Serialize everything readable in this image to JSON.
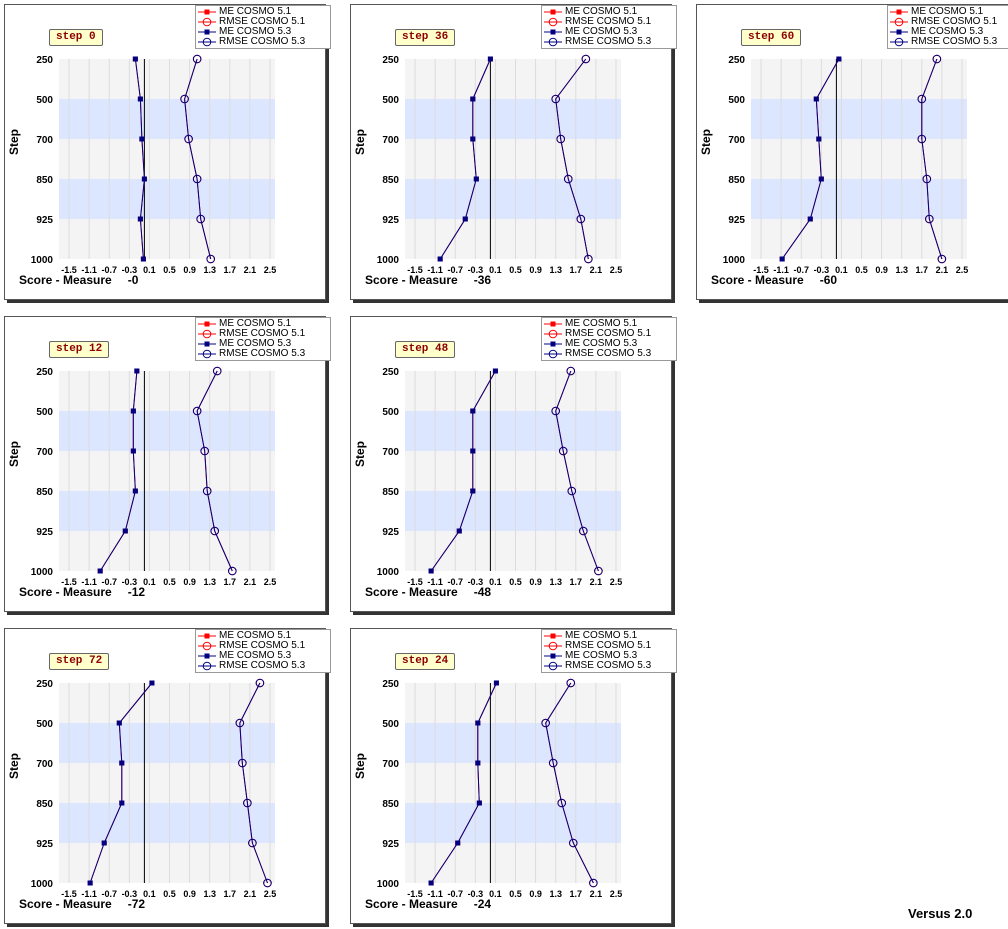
{
  "footer": {
    "version": "Versus 2.0"
  },
  "legend": [
    "ME COSMO 5.1",
    "RMSE COSMO 5.1",
    "ME COSMO 5.3",
    "RMSE COSMO 5.3"
  ],
  "colors": {
    "cosmo51": "#ff0000",
    "cosmo53": "#000080",
    "band": "#dde6ff",
    "bg": "#f4f4f4"
  },
  "chart_data": [
    {
      "type": "line",
      "step": "step 0",
      "xlabel": "Score - Measure",
      "xvalue": "-0",
      "ylabel": "Step",
      "categories": [
        "250",
        "500",
        "700",
        "850",
        "925",
        "1000"
      ],
      "xticks": [
        "-1.5",
        "-1.1",
        "-0.7",
        "-0.3",
        "0.1",
        "0.5",
        "0.9",
        "1.3",
        "1.7",
        "2.1",
        "2.5"
      ],
      "xlim": [
        -1.7,
        2.6
      ],
      "series": [
        {
          "name": "ME COSMO 5.1",
          "values": [
            -0.18,
            -0.08,
            -0.05,
            0.0,
            -0.08,
            -0.02
          ]
        },
        {
          "name": "RMSE COSMO 5.1",
          "values": [
            1.05,
            0.8,
            0.88,
            1.05,
            1.12,
            1.32
          ]
        },
        {
          "name": "ME COSMO 5.3",
          "values": [
            -0.18,
            -0.08,
            -0.05,
            0.0,
            -0.08,
            -0.02
          ]
        },
        {
          "name": "RMSE COSMO 5.3",
          "values": [
            1.05,
            0.8,
            0.88,
            1.05,
            1.12,
            1.32
          ]
        }
      ]
    },
    {
      "type": "line",
      "step": "step 12",
      "xlabel": "Score - Measure",
      "xvalue": "-12",
      "ylabel": "Step",
      "categories": [
        "250",
        "500",
        "700",
        "850",
        "925",
        "1000"
      ],
      "xticks": [
        "-1.5",
        "-1.1",
        "-0.7",
        "-0.3",
        "0.1",
        "0.5",
        "0.9",
        "1.3",
        "1.7",
        "2.1",
        "2.5"
      ],
      "xlim": [
        -1.7,
        2.6
      ],
      "series": [
        {
          "name": "ME COSMO 5.1",
          "values": [
            -0.15,
            -0.22,
            -0.22,
            -0.18,
            -0.38,
            -0.88
          ]
        },
        {
          "name": "RMSE COSMO 5.1",
          "values": [
            1.45,
            1.05,
            1.2,
            1.25,
            1.4,
            1.75
          ]
        },
        {
          "name": "ME COSMO 5.3",
          "values": [
            -0.15,
            -0.22,
            -0.22,
            -0.18,
            -0.38,
            -0.88
          ]
        },
        {
          "name": "RMSE COSMO 5.3",
          "values": [
            1.45,
            1.05,
            1.2,
            1.25,
            1.4,
            1.75
          ]
        }
      ]
    },
    {
      "type": "line",
      "step": "step 24",
      "xlabel": "Score - Measure",
      "xvalue": "-24",
      "ylabel": "Step",
      "categories": [
        "250",
        "500",
        "700",
        "850",
        "925",
        "1000"
      ],
      "xticks": [
        "-1.5",
        "-1.1",
        "-0.7",
        "-0.3",
        "0.1",
        "0.5",
        "0.9",
        "1.3",
        "1.7",
        "2.1",
        "2.5"
      ],
      "xlim": [
        -1.7,
        2.6
      ],
      "series": [
        {
          "name": "ME COSMO 5.1",
          "values": [
            0.12,
            -0.25,
            -0.25,
            -0.22,
            -0.65,
            -1.18
          ]
        },
        {
          "name": "RMSE COSMO 5.1",
          "values": [
            1.6,
            1.1,
            1.25,
            1.42,
            1.65,
            2.05
          ]
        },
        {
          "name": "ME COSMO 5.3",
          "values": [
            0.12,
            -0.25,
            -0.25,
            -0.22,
            -0.65,
            -1.18
          ]
        },
        {
          "name": "RMSE COSMO 5.3",
          "values": [
            1.6,
            1.1,
            1.25,
            1.42,
            1.65,
            2.05
          ]
        }
      ]
    },
    {
      "type": "line",
      "step": "step 36",
      "xlabel": "Score - Measure",
      "xvalue": "-36",
      "ylabel": "Step",
      "categories": [
        "250",
        "500",
        "700",
        "850",
        "925",
        "1000"
      ],
      "xticks": [
        "-1.5",
        "-1.1",
        "-0.7",
        "-0.3",
        "0.1",
        "0.5",
        "0.9",
        "1.3",
        "1.7",
        "2.1",
        "2.5"
      ],
      "xlim": [
        -1.7,
        2.6
      ],
      "series": [
        {
          "name": "ME COSMO 5.1",
          "values": [
            0.0,
            -0.35,
            -0.35,
            -0.28,
            -0.5,
            -1.0
          ]
        },
        {
          "name": "RMSE COSMO 5.1",
          "values": [
            1.9,
            1.3,
            1.4,
            1.55,
            1.8,
            1.95
          ]
        },
        {
          "name": "ME COSMO 5.3",
          "values": [
            0.0,
            -0.35,
            -0.35,
            -0.28,
            -0.5,
            -1.0
          ]
        },
        {
          "name": "RMSE COSMO 5.3",
          "values": [
            1.9,
            1.3,
            1.4,
            1.55,
            1.8,
            1.95
          ]
        }
      ]
    },
    {
      "type": "line",
      "step": "step 48",
      "xlabel": "Score - Measure",
      "xvalue": "-48",
      "ylabel": "Step",
      "categories": [
        "250",
        "500",
        "700",
        "850",
        "925",
        "1000"
      ],
      "xticks": [
        "-1.5",
        "-1.1",
        "-0.7",
        "-0.3",
        "0.1",
        "0.5",
        "0.9",
        "1.3",
        "1.7",
        "2.1",
        "2.5"
      ],
      "xlim": [
        -1.7,
        2.6
      ],
      "series": [
        {
          "name": "ME COSMO 5.1",
          "values": [
            0.1,
            -0.35,
            -0.35,
            -0.35,
            -0.62,
            -1.18
          ]
        },
        {
          "name": "RMSE COSMO 5.1",
          "values": [
            1.6,
            1.3,
            1.45,
            1.62,
            1.85,
            2.15
          ]
        },
        {
          "name": "ME COSMO 5.3",
          "values": [
            0.1,
            -0.35,
            -0.35,
            -0.35,
            -0.62,
            -1.18
          ]
        },
        {
          "name": "RMSE COSMO 5.3",
          "values": [
            1.6,
            1.3,
            1.45,
            1.62,
            1.85,
            2.15
          ]
        }
      ]
    },
    {
      "type": "line",
      "step": "step 60",
      "xlabel": "Score - Measure",
      "xvalue": "-60",
      "ylabel": "Step",
      "categories": [
        "250",
        "500",
        "700",
        "850",
        "925",
        "1000"
      ],
      "xticks": [
        "-1.5",
        "-1.1",
        "-0.7",
        "-0.3",
        "0.1",
        "0.5",
        "0.9",
        "1.3",
        "1.7",
        "2.1",
        "2.5"
      ],
      "xlim": [
        -1.7,
        2.6
      ],
      "series": [
        {
          "name": "ME COSMO 5.1",
          "values": [
            0.05,
            -0.4,
            -0.35,
            -0.3,
            -0.52,
            -1.08
          ]
        },
        {
          "name": "RMSE COSMO 5.1",
          "values": [
            2.0,
            1.7,
            1.7,
            1.8,
            1.85,
            2.1
          ]
        },
        {
          "name": "ME COSMO 5.3",
          "values": [
            0.05,
            -0.4,
            -0.35,
            -0.3,
            -0.52,
            -1.08
          ]
        },
        {
          "name": "RMSE COSMO 5.3",
          "values": [
            2.0,
            1.7,
            1.7,
            1.8,
            1.85,
            2.1
          ]
        }
      ]
    },
    {
      "type": "line",
      "step": "step 72",
      "xlabel": "Score - Measure",
      "xvalue": "-72",
      "ylabel": "Step",
      "categories": [
        "250",
        "500",
        "700",
        "850",
        "925",
        "1000"
      ],
      "xticks": [
        "-1.5",
        "-1.1",
        "-0.7",
        "-0.3",
        "0.1",
        "0.5",
        "0.9",
        "1.3",
        "1.7",
        "2.1",
        "2.5"
      ],
      "xlim": [
        -1.7,
        2.6
      ],
      "series": [
        {
          "name": "ME COSMO 5.1",
          "values": [
            0.15,
            -0.5,
            -0.45,
            -0.45,
            -0.8,
            -1.08
          ]
        },
        {
          "name": "RMSE COSMO 5.1",
          "values": [
            2.3,
            1.9,
            1.95,
            2.05,
            2.15,
            2.45
          ]
        },
        {
          "name": "ME COSMO 5.3",
          "values": [
            0.15,
            -0.5,
            -0.45,
            -0.45,
            -0.8,
            -1.08
          ]
        },
        {
          "name": "RMSE COSMO 5.3",
          "values": [
            2.3,
            1.9,
            1.95,
            2.05,
            2.15,
            2.45
          ]
        }
      ]
    }
  ]
}
